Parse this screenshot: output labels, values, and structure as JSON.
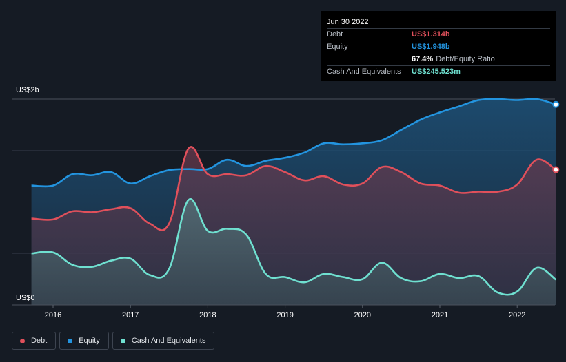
{
  "tooltip": {
    "date": "Jun 30 2022",
    "debt_label": "Debt",
    "debt_value": "US$1.314b",
    "equity_label": "Equity",
    "equity_value": "US$1.948b",
    "ratio_value": "67.4%",
    "ratio_label": "Debt/Equity Ratio",
    "cash_label": "Cash And Equivalents",
    "cash_value": "US$245.523m"
  },
  "legend": [
    {
      "label": "Debt",
      "color": "#e0505b"
    },
    {
      "label": "Equity",
      "color": "#2394df"
    },
    {
      "label": "Cash And Equivalents",
      "color": "#6fe0d0"
    }
  ],
  "colors": {
    "debt": "#e0505b",
    "equity": "#2394df",
    "cash": "#6fe0d0",
    "background": "#151b24",
    "grid": "#3a414c"
  },
  "chart_data": {
    "type": "area",
    "title": "",
    "xlabel": "",
    "ylabel": "",
    "y_unit": "US$ billions",
    "ylim": [
      0,
      2.0
    ],
    "xlim": [
      2015.72,
      2022.5
    ],
    "y_tick_labels": [
      {
        "value": 2.0,
        "label": "US$2b"
      },
      {
        "value": 0,
        "label": "US$0"
      }
    ],
    "x_ticks": [
      {
        "value": 2016,
        "label": "2016"
      },
      {
        "value": 2017,
        "label": "2017"
      },
      {
        "value": 2018,
        "label": "2018"
      },
      {
        "value": 2019,
        "label": "2019"
      },
      {
        "value": 2020,
        "label": "2020"
      },
      {
        "value": 2021,
        "label": "2021"
      },
      {
        "value": 2022,
        "label": "2022"
      }
    ],
    "series": [
      {
        "name": "Equity",
        "color": "#2394df",
        "x": [
          2015.72,
          2016.0,
          2016.25,
          2016.5,
          2016.75,
          2017.0,
          2017.25,
          2017.5,
          2017.75,
          2018.0,
          2018.25,
          2018.5,
          2018.75,
          2019.0,
          2019.25,
          2019.5,
          2019.75,
          2020.0,
          2020.25,
          2020.5,
          2020.75,
          2021.0,
          2021.25,
          2021.5,
          2021.75,
          2022.0,
          2022.25,
          2022.5
        ],
        "values": [
          1.16,
          1.16,
          1.27,
          1.26,
          1.29,
          1.18,
          1.25,
          1.31,
          1.32,
          1.32,
          1.41,
          1.35,
          1.4,
          1.43,
          1.48,
          1.57,
          1.56,
          1.57,
          1.6,
          1.7,
          1.8,
          1.87,
          1.93,
          1.99,
          2.0,
          1.99,
          2.0,
          1.948
        ]
      },
      {
        "name": "Debt",
        "color": "#e0505b",
        "x": [
          2015.72,
          2016.0,
          2016.25,
          2016.5,
          2016.75,
          2017.0,
          2017.25,
          2017.5,
          2017.75,
          2018.0,
          2018.25,
          2018.5,
          2018.75,
          2019.0,
          2019.25,
          2019.5,
          2019.75,
          2020.0,
          2020.25,
          2020.5,
          2020.75,
          2021.0,
          2021.25,
          2021.5,
          2021.75,
          2022.0,
          2022.25,
          2022.5
        ],
        "values": [
          0.84,
          0.83,
          0.91,
          0.9,
          0.93,
          0.94,
          0.79,
          0.79,
          1.52,
          1.27,
          1.27,
          1.26,
          1.35,
          1.29,
          1.21,
          1.25,
          1.17,
          1.18,
          1.34,
          1.29,
          1.18,
          1.16,
          1.09,
          1.1,
          1.1,
          1.17,
          1.41,
          1.314
        ]
      },
      {
        "name": "Cash And Equivalents",
        "color": "#6fe0d0",
        "x": [
          2015.72,
          2016.0,
          2016.25,
          2016.5,
          2016.75,
          2017.0,
          2017.25,
          2017.5,
          2017.75,
          2018.0,
          2018.25,
          2018.5,
          2018.75,
          2019.0,
          2019.25,
          2019.5,
          2019.75,
          2020.0,
          2020.25,
          2020.5,
          2020.75,
          2021.0,
          2021.25,
          2021.5,
          2021.75,
          2022.0,
          2022.25,
          2022.5
        ],
        "values": [
          0.5,
          0.51,
          0.39,
          0.37,
          0.43,
          0.45,
          0.29,
          0.35,
          1.02,
          0.72,
          0.74,
          0.68,
          0.3,
          0.27,
          0.22,
          0.3,
          0.27,
          0.25,
          0.41,
          0.26,
          0.23,
          0.3,
          0.26,
          0.28,
          0.12,
          0.13,
          0.36,
          0.2455
        ]
      }
    ]
  }
}
